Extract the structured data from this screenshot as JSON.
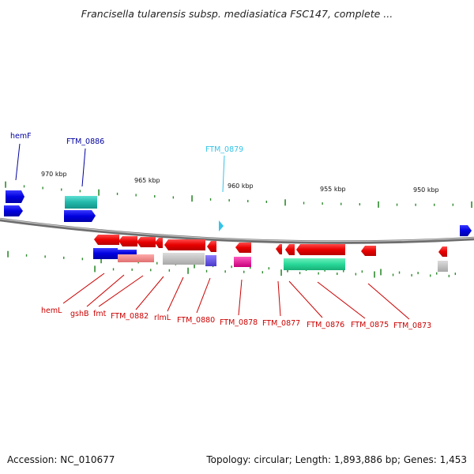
{
  "title": "Francisella tularensis subsp. mediasiatica FSC147, complete ...",
  "footer": {
    "accession": "Accession: NC_010677",
    "topology": "Topology: circular; Length: 1,893,886 bp; Genes: 1,453"
  },
  "colors": {
    "backbone": "#8c8c8c",
    "tick": "#2e8b2e",
    "forward_label": "#0000a0",
    "reverse_label": "#cc0000",
    "highlight_label": "#33c4e8"
  },
  "scale_labels": [
    "970 kbp",
    "965 kbp",
    "960 kbp",
    "955 kbp",
    "950 kbp"
  ],
  "top_labels": [
    {
      "text": "hemF",
      "color": "#0000a0"
    },
    {
      "text": "FTM_0886",
      "color": "#0000a0"
    },
    {
      "text": "FTM_0879",
      "color": "#33c4e8"
    }
  ],
  "bottom_labels": [
    "hemL",
    "gshB",
    "fmt",
    "FTM_0882",
    "rlmL",
    "FTM_0880",
    "FTM_0878",
    "FTM_0877",
    "FTM_0876",
    "FTM_0875",
    "FTM_0873"
  ]
}
